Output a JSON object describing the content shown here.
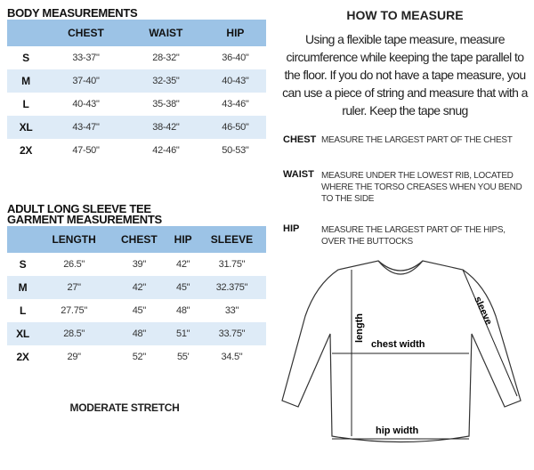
{
  "body_measurements": {
    "title": "BODY MEASUREMENTS",
    "headers": [
      "",
      "CHEST",
      "WAIST",
      "HIP"
    ],
    "rows": [
      [
        "S",
        "33-37\"",
        "28-32\"",
        "36-40\""
      ],
      [
        "M",
        "37-40\"",
        "32-35\"",
        "40-43\""
      ],
      [
        "L",
        "40-43\"",
        "35-38\"",
        "43-46\""
      ],
      [
        "XL",
        "43-47\"",
        "38-42\"",
        "46-50\""
      ],
      [
        "2X",
        "47-50\"",
        "42-46\"",
        "50-53\""
      ]
    ]
  },
  "garment_measurements": {
    "title_line1": "ADULT LONG SLEEVE TEE",
    "title_line2": "GARMENT MEASUREMENTS",
    "headers": [
      "",
      "LENGTH",
      "CHEST",
      "HIP",
      "SLEEVE"
    ],
    "rows": [
      [
        "S",
        "26.5\"",
        "39\"",
        "42\"",
        "31.75\""
      ],
      [
        "M",
        "27\"",
        "42\"",
        "45\"",
        "32.375\""
      ],
      [
        "L",
        "27.75\"",
        "45\"",
        "48\"",
        "33\""
      ],
      [
        "XL",
        "28.5\"",
        "48\"",
        "51\"",
        "33.75\""
      ],
      [
        "2X",
        "29\"",
        "52\"",
        "55'",
        "34.5\""
      ]
    ]
  },
  "stretch": "MODERATE STRETCH",
  "how_to": {
    "title": "HOW TO MEASURE",
    "text": "Using a flexible tape measure, measure circumference while keeping the tape parallel to the floor.  If you do not have a tape measure, you can use a piece of string and measure that with a ruler. Keep the tape snug",
    "items": [
      {
        "term": "CHEST",
        "desc": "MEASURE THE LARGEST PART OF THE CHEST"
      },
      {
        "term": "WAIST",
        "desc": "MEASURE UNDER THE LOWEST RIB, LOCATED WHERE THE TORSO CREASES WHEN YOU BEND TO THE SIDE"
      },
      {
        "term": "HIP",
        "desc": "MEASURE THE LARGEST PART OF THE HIPS, OVER THE BUTTOCKS"
      }
    ]
  },
  "diagram": {
    "length": "length",
    "chest_width": "chest width",
    "sleeve": "sleeve",
    "hip_width": "hip width"
  },
  "colors": {
    "header_blue": "#9cc3e6",
    "row_blue": "#deebf7"
  }
}
